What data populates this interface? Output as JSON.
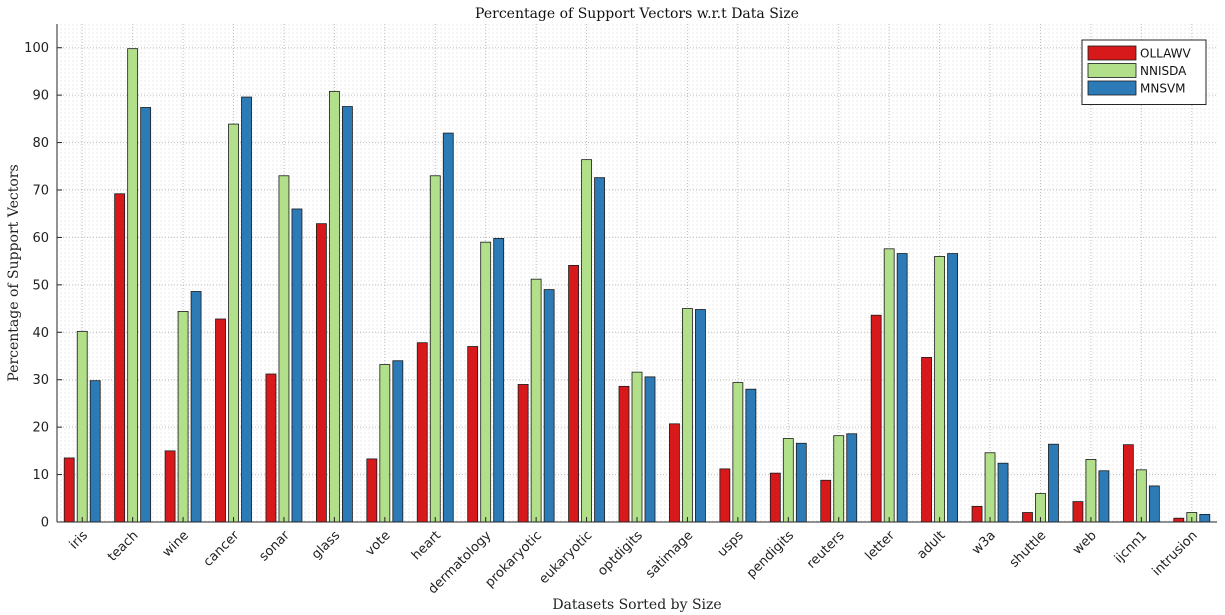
{
  "chart_data": {
    "type": "bar",
    "title": "Percentage of Support Vectors w.r.t Data Size",
    "xlabel": "Datasets Sorted by Size",
    "ylabel": "Percentage of Support Vectors",
    "ylim": [
      0,
      105
    ],
    "yticks": [
      0,
      10,
      20,
      30,
      40,
      50,
      60,
      70,
      80,
      90,
      100
    ],
    "grid": true,
    "grid_style": "dotted",
    "legend_position": "top-right",
    "categories": [
      "iris",
      "teach",
      "wine",
      "cancer",
      "sonar",
      "glass",
      "vote",
      "heart",
      "dermatology",
      "prokaryotic",
      "eukaryotic",
      "optdigits",
      "satimage",
      "usps",
      "pendigits",
      "reuters",
      "letter",
      "adult",
      "w3a",
      "shuttle",
      "web",
      "ijcnn1",
      "intrusion"
    ],
    "series": [
      {
        "name": "OLLAWV",
        "color": "#d7191c",
        "values": [
          13.5,
          69.2,
          15.0,
          42.8,
          31.2,
          62.9,
          13.3,
          37.8,
          37.0,
          29.0,
          54.1,
          28.6,
          20.7,
          11.2,
          10.3,
          8.8,
          43.6,
          34.7,
          3.3,
          2.0,
          4.3,
          16.3,
          0.8
        ]
      },
      {
        "name": "NNISDA",
        "color": "#b2df8a",
        "values": [
          40.2,
          99.8,
          44.4,
          83.9,
          73.0,
          90.8,
          33.2,
          73.0,
          59.0,
          51.2,
          76.4,
          31.6,
          45.0,
          29.4,
          17.6,
          18.2,
          57.6,
          56.0,
          14.6,
          6.0,
          13.2,
          11.0,
          2.0
        ]
      },
      {
        "name": "MNSVM",
        "color": "#2c7bb6",
        "values": [
          29.8,
          87.4,
          48.6,
          89.6,
          66.0,
          87.6,
          34.0,
          82.0,
          59.8,
          49.0,
          72.6,
          30.6,
          44.8,
          28.0,
          16.6,
          18.6,
          56.6,
          56.6,
          12.4,
          16.4,
          10.8,
          7.6,
          1.6
        ]
      }
    ]
  }
}
